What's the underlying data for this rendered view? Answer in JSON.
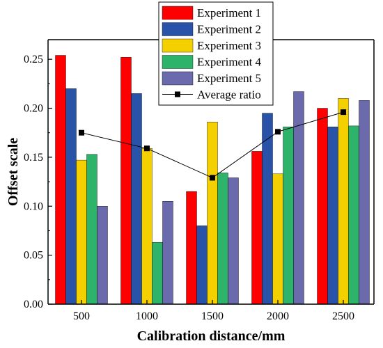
{
  "chart_data": {
    "type": "bar",
    "xlabel": "Calibration distance/mm",
    "ylabel": "Offset scale",
    "categories": [
      "500",
      "1000",
      "1500",
      "2000",
      "2500"
    ],
    "ylim": [
      0,
      0.27
    ],
    "yticks": [
      0.0,
      0.05,
      0.1,
      0.15,
      0.2,
      0.25
    ],
    "ytick_labels": [
      "0.00",
      "0.05",
      "0.10",
      "0.15",
      "0.20",
      "0.25"
    ],
    "grid": false,
    "legend_position": "top-center",
    "series": [
      {
        "name": "Experiment 1",
        "color": "#ff0000",
        "values": [
          0.254,
          0.252,
          0.115,
          0.156,
          0.2
        ]
      },
      {
        "name": "Experiment 2",
        "color": "#2953a8",
        "values": [
          0.22,
          0.215,
          0.08,
          0.195,
          0.181
        ]
      },
      {
        "name": "Experiment 3",
        "color": "#f5d000",
        "values": [
          0.147,
          0.159,
          0.186,
          0.133,
          0.21
        ]
      },
      {
        "name": "Experiment 4",
        "color": "#2eb36b",
        "values": [
          0.153,
          0.063,
          0.134,
          0.181,
          0.182
        ]
      },
      {
        "name": "Experiment 5",
        "color": "#6a6aad",
        "values": [
          0.1,
          0.105,
          0.129,
          0.217,
          0.208
        ]
      }
    ],
    "line_series": {
      "name": "Average ratio",
      "color": "#000000",
      "values": [
        0.175,
        0.159,
        0.129,
        0.176,
        0.196
      ]
    }
  }
}
